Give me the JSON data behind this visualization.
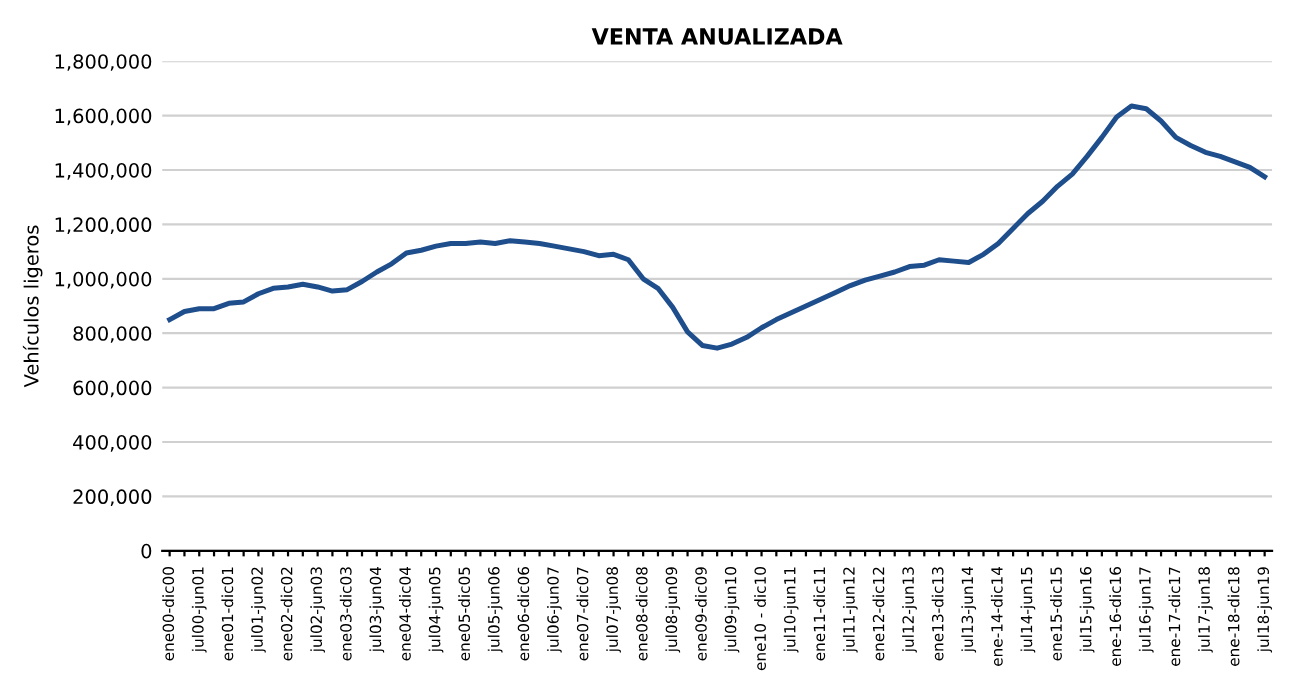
{
  "chart_data": {
    "type": "line",
    "title": "VENTA ANUALIZADA",
    "ylabel": "Vehículos ligeros",
    "categories": [
      "ene00-dic00",
      null,
      "jul00-jun01",
      null,
      "ene01-dic01",
      null,
      "jul01-jun02",
      null,
      "ene02-dic02",
      null,
      "jul02-jun03",
      null,
      "ene03-dic03",
      null,
      "jul03-jun04",
      null,
      "ene04-dic04",
      null,
      "jul04-jun05",
      null,
      "ene05-dic05",
      null,
      "jul05-jun06",
      null,
      "ene06-dic06",
      null,
      "jul06-jun07",
      null,
      "ene07-dic07",
      null,
      "jul07-jun08",
      null,
      "ene08-dic08",
      null,
      "jul08-jun09",
      null,
      "ene09-dic09",
      null,
      "jul09-jun10",
      null,
      "ene10 - dic10",
      null,
      "jul10-jun11",
      null,
      "ene11-dic11",
      null,
      "jul11-jun12",
      null,
      "ene12-dic12",
      null,
      "jul12-jun13",
      null,
      "ene13-dic13",
      null,
      "jul13-jun14",
      null,
      "ene-14-dic14",
      null,
      "jul14-jun15",
      null,
      "ene15-dic15",
      null,
      "jul15-jun16",
      null,
      "ene-16-dic16",
      null,
      "jul16-jun17",
      null,
      "ene-17-dic17",
      null,
      "jul17-jun18",
      null,
      "ene-18-dic18",
      null,
      "jul18-jun19"
    ],
    "series": [
      {
        "color": "#1f4e8c",
        "values": [
          850000,
          880000,
          890000,
          890000,
          910000,
          915000,
          945000,
          965000,
          970000,
          980000,
          970000,
          955000,
          960000,
          990000,
          1025000,
          1055000,
          1095000,
          1105000,
          1120000,
          1130000,
          1130000,
          1135000,
          1130000,
          1140000,
          1135000,
          1130000,
          1120000,
          1110000,
          1100000,
          1085000,
          1090000,
          1070000,
          1000000,
          965000,
          895000,
          805000,
          755000,
          745000,
          760000,
          785000,
          820000,
          850000,
          875000,
          900000,
          925000,
          950000,
          975000,
          995000,
          1010000,
          1025000,
          1045000,
          1050000,
          1070000,
          1065000,
          1060000,
          1090000,
          1130000,
          1185000,
          1240000,
          1285000,
          1340000,
          1385000,
          1450000,
          1520000,
          1595000,
          1635000,
          1625000,
          1580000,
          1520000,
          1490000,
          1465000,
          1450000,
          1430000,
          1410000,
          1375000
        ]
      }
    ],
    "ylim": [
      0,
      1800000
    ],
    "yticks": [
      {
        "value": 0,
        "label": "0"
      },
      {
        "value": 200000,
        "label": "200,000"
      },
      {
        "value": 400000,
        "label": "400,000"
      },
      {
        "value": 600000,
        "label": "600,000"
      },
      {
        "value": 800000,
        "label": "800,000"
      },
      {
        "value": 1000000,
        "label": "1,000,000"
      },
      {
        "value": 1200000,
        "label": "1,200,000"
      },
      {
        "value": 1400000,
        "label": "1,400,000"
      },
      {
        "value": 1600000,
        "label": "1,600,000"
      },
      {
        "value": 1800000,
        "label": "1,800,000"
      }
    ],
    "grid": "y",
    "legend": false,
    "marker": "none",
    "line_style": "solid"
  }
}
